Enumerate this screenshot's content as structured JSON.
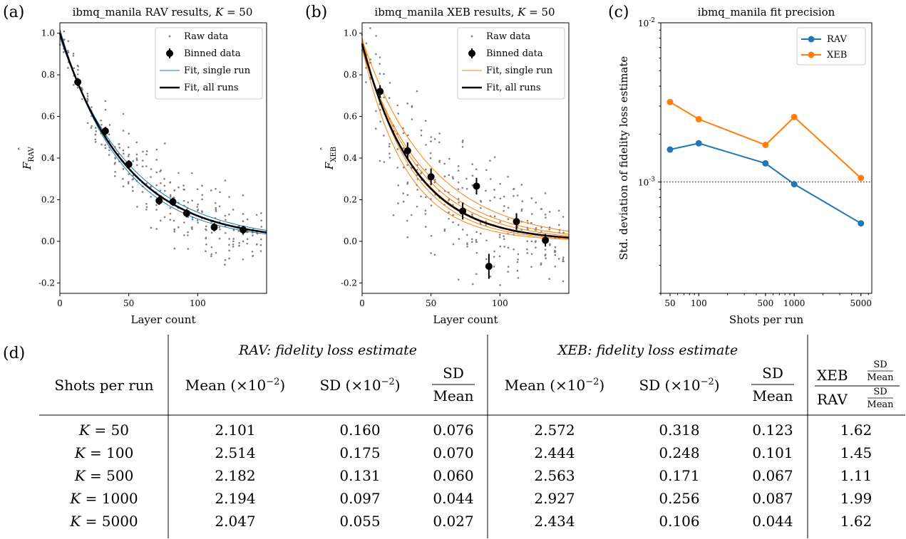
{
  "chart_data": [
    {
      "type": "scatter",
      "panel_label": "(a)",
      "title": "ibmq_manila RAV results, K = 50",
      "title_prefix": "ibmq_manila RAV results, ",
      "title_param": "K",
      "title_value": "= 50",
      "xlabel": "Layer count",
      "ylabel_main": "F",
      "ylabel_sub": "RAV",
      "xlim": [
        0,
        150
      ],
      "ylim": [
        -0.25,
        1.05
      ],
      "x_ticks": [
        0,
        50,
        100
      ],
      "y_ticks": [
        -0.2,
        0.0,
        0.2,
        0.4,
        0.6,
        0.8,
        1.0
      ],
      "y_tick_labels": [
        "-0.2",
        "0.0",
        "0.2",
        "0.4",
        "0.6",
        "0.8",
        "1.0"
      ],
      "grid": false,
      "legend_position": "top-right",
      "legend": [
        "Raw data",
        "Binned data",
        "Fit, single run",
        "Fit, all runs"
      ],
      "fit_color": "#1f77b4",
      "binned": {
        "x": [
          13,
          33,
          50,
          72,
          82,
          92,
          112,
          133
        ],
        "y": [
          0.765,
          0.53,
          0.37,
          0.195,
          0.19,
          0.135,
          0.068,
          0.055
        ],
        "err": [
          0.02,
          0.02,
          0.02,
          0.02,
          0.02,
          0.02,
          0.02,
          0.02
        ]
      },
      "fit_all": {
        "a": 1.0,
        "b": 0.021,
        "c": 0.0
      },
      "fit_runs_amplitude": [
        0.98,
        1.0,
        1.02
      ],
      "fit_runs_rate": [
        0.0195,
        0.021,
        0.0225
      ],
      "raw_columns": {
        "x": [
          0,
          3,
          6,
          10,
          13,
          16,
          20,
          23,
          26,
          30,
          33,
          36,
          40,
          43,
          46,
          50,
          53,
          56,
          60,
          63,
          66,
          70,
          73,
          76,
          80,
          83,
          86,
          90,
          93,
          96,
          100,
          103,
          106,
          110,
          113,
          116,
          120,
          123,
          126,
          130,
          133,
          136,
          140,
          143,
          146
        ],
        "spread": [
          0.05,
          0.1,
          0.1,
          0.12,
          0.12,
          0.12,
          0.14,
          0.14,
          0.15,
          0.15,
          0.16,
          0.16,
          0.16,
          0.16,
          0.16,
          0.17,
          0.17,
          0.17,
          0.17,
          0.17,
          0.17,
          0.18,
          0.18,
          0.18,
          0.18,
          0.18,
          0.18,
          0.18,
          0.18,
          0.18,
          0.17,
          0.17,
          0.17,
          0.16,
          0.16,
          0.16,
          0.15,
          0.15,
          0.15,
          0.14,
          0.14,
          0.14,
          0.14,
          0.14,
          0.14
        ],
        "n": [
          3,
          5,
          6,
          5,
          7,
          4,
          6,
          5,
          7,
          6,
          8,
          6,
          7,
          6,
          7,
          8,
          6,
          7,
          6,
          7,
          6,
          8,
          7,
          6,
          7,
          8,
          6,
          7,
          6,
          7,
          7,
          6,
          7,
          6,
          8,
          6,
          7,
          6,
          7,
          6,
          8,
          6,
          7,
          6,
          7
        ]
      }
    },
    {
      "type": "scatter",
      "panel_label": "(b)",
      "title": "ibmq_manila XEB results, K = 50",
      "title_prefix": "ibmq_manila XEB results, ",
      "title_param": "K",
      "title_value": "= 50",
      "xlabel": "Layer count",
      "ylabel_main": "F",
      "ylabel_sub": "XEB",
      "xlim": [
        0,
        150
      ],
      "ylim": [
        -0.25,
        1.05
      ],
      "x_ticks": [
        0,
        50,
        100
      ],
      "y_ticks": [
        -0.2,
        0.0,
        0.2,
        0.4,
        0.6,
        0.8,
        1.0
      ],
      "y_tick_labels": [
        "-0.2",
        "0.0",
        "0.2",
        "0.4",
        "0.6",
        "0.8",
        "1.0"
      ],
      "grid": false,
      "legend_position": "top-right",
      "legend": [
        "Raw data",
        "Binned data",
        "Fit, single run",
        "Fit, all runs"
      ],
      "fit_color": "#ff7f0e",
      "binned": {
        "x": [
          13,
          33,
          50,
          73,
          83,
          92,
          112,
          133
        ],
        "y": [
          0.72,
          0.435,
          0.31,
          0.145,
          0.265,
          -0.12,
          0.095,
          0.005
        ],
        "err": [
          0.03,
          0.04,
          0.04,
          0.04,
          0.04,
          0.06,
          0.04,
          0.03
        ]
      },
      "fit_all": {
        "a": 0.95,
        "b": 0.0265,
        "c": 0.0
      },
      "fit_runs_amplitude": [
        0.92,
        0.94,
        0.95,
        0.96,
        0.98,
        0.93,
        0.97
      ],
      "fit_runs_rate": [
        0.022,
        0.024,
        0.026,
        0.027,
        0.029,
        0.031,
        0.02
      ],
      "raw_columns": {
        "x": [
          0,
          3,
          6,
          10,
          13,
          16,
          20,
          23,
          26,
          30,
          33,
          36,
          40,
          43,
          46,
          50,
          53,
          56,
          60,
          63,
          66,
          70,
          73,
          76,
          80,
          83,
          86,
          90,
          93,
          96,
          100,
          103,
          106,
          110,
          113,
          116,
          120,
          123,
          126,
          130,
          133,
          136,
          140,
          143,
          146
        ],
        "spread": [
          0.08,
          0.15,
          0.18,
          0.2,
          0.22,
          0.24,
          0.25,
          0.26,
          0.27,
          0.28,
          0.3,
          0.3,
          0.3,
          0.3,
          0.3,
          0.3,
          0.3,
          0.3,
          0.3,
          0.3,
          0.3,
          0.3,
          0.3,
          0.3,
          0.3,
          0.28,
          0.28,
          0.28,
          0.27,
          0.26,
          0.25,
          0.25,
          0.24,
          0.23,
          0.22,
          0.22,
          0.2,
          0.2,
          0.19,
          0.18,
          0.18,
          0.17,
          0.16,
          0.16,
          0.15
        ],
        "n": [
          3,
          5,
          6,
          5,
          8,
          5,
          7,
          5,
          7,
          6,
          9,
          6,
          8,
          6,
          7,
          9,
          6,
          7,
          6,
          7,
          6,
          9,
          7,
          6,
          8,
          9,
          6,
          7,
          6,
          7,
          8,
          6,
          7,
          6,
          9,
          6,
          7,
          6,
          7,
          6,
          9,
          6,
          7,
          6,
          7
        ]
      }
    },
    {
      "type": "line",
      "panel_label": "(c)",
      "title": "ibmq_manila fit precision",
      "xlabel": "Shots per run",
      "ylabel": "Std. deviation of fidelity loss estimate",
      "x_scale": "log",
      "y_scale": "log",
      "xlim": [
        40,
        6500
      ],
      "ylim": [
        0.0002,
        0.01
      ],
      "x_ticks": [
        50,
        100,
        500,
        1000,
        5000
      ],
      "x_tick_labels": [
        "50",
        "100",
        "500",
        "1000",
        "5000"
      ],
      "y_ticks": [
        0.001,
        0.01
      ],
      "y_tick_base": "10",
      "y_tick_exponents": [
        "-3",
        "-2"
      ],
      "grid": false,
      "legend_position": "top-right",
      "reference_line": {
        "y": 0.001,
        "style": "dotted"
      },
      "x": [
        50,
        100,
        500,
        1000,
        5000
      ],
      "series": [
        {
          "name": "RAV",
          "color": "#1f77b4",
          "values": [
            0.0016,
            0.00175,
            0.00131,
            0.00097,
            0.00055
          ]
        },
        {
          "name": "XEB",
          "color": "#ff7f0e",
          "values": [
            0.00318,
            0.00248,
            0.00171,
            0.00256,
            0.00106
          ]
        }
      ]
    },
    {
      "type": "table",
      "panel_label": "(d)",
      "group_headers": [
        "RAV: fidelity loss estimate",
        "XEB: fidelity loss estimate"
      ],
      "row_header": "Shots per run",
      "columns": [
        "Mean (×10",
        "SD (×10",
        "SD / Mean",
        "Mean (×10",
        "SD (×10",
        "SD / Mean",
        "XEB / RAV ratio"
      ],
      "col_main": "Mean (×10",
      "col_sd": "SD (×10",
      "col_exp": "−2",
      "col_close": ")",
      "frac_num": "SD",
      "frac_den": "Mean",
      "ratio_top": "XEB",
      "ratio_bottom": "RAV",
      "rows": [
        {
          "label_param": "K",
          "label_value": "= 50",
          "cells": [
            "2.101",
            "0.160",
            "0.076",
            "2.572",
            "0.318",
            "0.123",
            "1.62"
          ]
        },
        {
          "label_param": "K",
          "label_value": "= 100",
          "cells": [
            "2.514",
            "0.175",
            "0.070",
            "2.444",
            "0.248",
            "0.101",
            "1.45"
          ]
        },
        {
          "label_param": "K",
          "label_value": "= 500",
          "cells": [
            "2.182",
            "0.131",
            "0.060",
            "2.563",
            "0.171",
            "0.067",
            "1.11"
          ]
        },
        {
          "label_param": "K",
          "label_value": "= 1000",
          "cells": [
            "2.194",
            "0.097",
            "0.044",
            "2.927",
            "0.256",
            "0.087",
            "1.99"
          ]
        },
        {
          "label_param": "K",
          "label_value": "= 5000",
          "cells": [
            "2.047",
            "0.055",
            "0.027",
            "2.434",
            "0.106",
            "0.044",
            "1.62"
          ]
        }
      ]
    }
  ]
}
